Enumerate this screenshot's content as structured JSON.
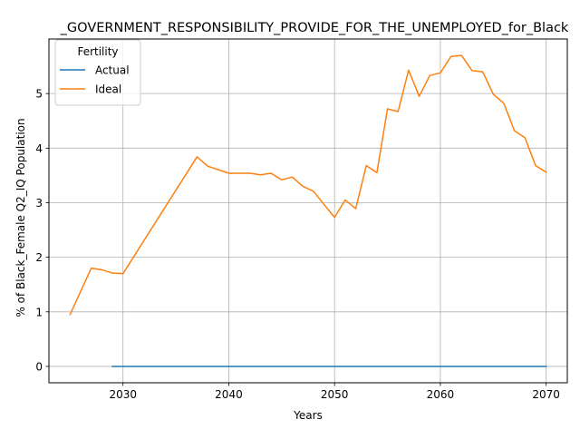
{
  "chart_data": {
    "type": "line",
    "title": "_GOVERNMENT_RESPONSIBILITY_PROVIDE_FOR_THE_UNEMPLOYED_for_Black",
    "xlabel": "Years",
    "ylabel": "% of Black_Female Q2_IQ Population",
    "xlim": [
      2023,
      2072
    ],
    "ylim": [
      -0.3,
      6.0
    ],
    "x_ticks": [
      2030,
      2040,
      2050,
      2060,
      2070
    ],
    "y_ticks": [
      0,
      1,
      2,
      3,
      4,
      5
    ],
    "grid": true,
    "legend": {
      "title": "Fertility",
      "placement": "top-left"
    },
    "colors": {
      "Actual": "#1f77b4",
      "Ideal": "#ff7f0e"
    },
    "series": [
      {
        "name": "Actual",
        "x": [
          2029,
          2030,
          2031,
          2032,
          2033,
          2034,
          2035,
          2036,
          2037,
          2038,
          2039,
          2040,
          2041,
          2042,
          2043,
          2044,
          2045,
          2046,
          2047,
          2048,
          2049,
          2050,
          2051,
          2052,
          2053,
          2054,
          2055,
          2056,
          2057,
          2058,
          2059,
          2060,
          2061,
          2062,
          2063,
          2064,
          2065,
          2066,
          2067,
          2068,
          2069,
          2070
        ],
        "y": [
          0,
          0,
          0,
          0,
          0,
          0,
          0,
          0,
          0,
          0,
          0,
          0,
          0,
          0,
          0,
          0,
          0,
          0,
          0,
          0,
          0,
          0,
          0,
          0,
          0,
          0,
          0,
          0,
          0,
          0,
          0,
          0,
          0,
          0,
          0,
          0,
          0,
          0,
          0,
          0,
          0,
          0
        ]
      },
      {
        "name": "Ideal",
        "x": [
          2025,
          2027,
          2028,
          2029,
          2030,
          2037,
          2038,
          2040,
          2042,
          2043,
          2044,
          2045,
          2046,
          2047,
          2048,
          2050,
          2051,
          2052,
          2053,
          2054,
          2055,
          2056,
          2057,
          2058,
          2059,
          2060,
          2061,
          2062,
          2063,
          2064,
          2065,
          2066,
          2067,
          2068,
          2069,
          2070
        ],
        "y": [
          0.95,
          1.8,
          1.77,
          1.71,
          1.7,
          3.84,
          3.67,
          3.54,
          3.54,
          3.51,
          3.54,
          3.42,
          3.47,
          3.3,
          3.21,
          2.73,
          3.05,
          2.89,
          3.68,
          3.55,
          4.72,
          4.67,
          5.43,
          4.95,
          5.33,
          5.38,
          5.68,
          5.7,
          5.42,
          5.4,
          4.99,
          4.82,
          4.32,
          4.19,
          3.68,
          3.56
        ]
      }
    ]
  }
}
